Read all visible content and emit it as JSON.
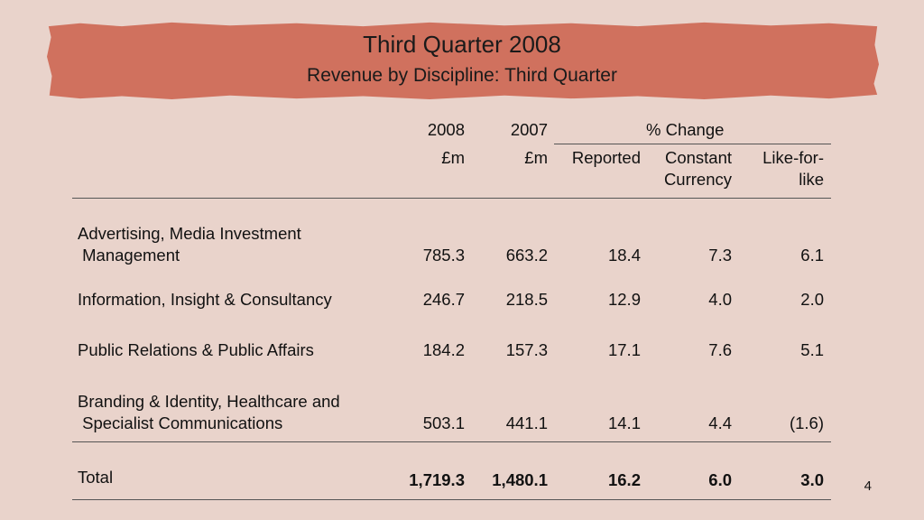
{
  "header": {
    "title": "Third Quarter 2008",
    "subtitle": "Revenue by Discipline: Third Quarter"
  },
  "table": {
    "columns": {
      "y2008": "2008",
      "y2007": "2007",
      "pct_change": "% Change",
      "unit_2008": "£m",
      "unit_2007": "£m",
      "reported": "Reported",
      "constant_1": "Constant",
      "constant_2": "Currency",
      "lfl_1": "Like-for-",
      "lfl_2": "like"
    },
    "rows": [
      {
        "label_1": "Advertising, Media Investment",
        "label_2": " Management",
        "y2008": "785.3",
        "y2007": "663.2",
        "reported": "18.4",
        "constant": "7.3",
        "lfl": "6.1"
      },
      {
        "label_1": "Information, Insight & Consultancy",
        "y2008": "246.7",
        "y2007": "218.5",
        "reported": "12.9",
        "constant": "4.0",
        "lfl": "2.0"
      },
      {
        "label_1": "Public Relations & Public Affairs",
        "y2008": "184.2",
        "y2007": "157.3",
        "reported": "17.1",
        "constant": "7.6",
        "lfl": "5.1"
      },
      {
        "label_1": "Branding & Identity, Healthcare and",
        "label_2": " Specialist Communications",
        "y2008": "503.1",
        "y2007": "441.1",
        "reported": "14.1",
        "constant": "4.4",
        "lfl": "(1.6)"
      }
    ],
    "total": {
      "label": "Total",
      "y2008": "1,719.3",
      "y2007": "1,480.1",
      "reported": "16.2",
      "constant": "6.0",
      "lfl": "3.0"
    }
  },
  "footer": {
    "page_number": "4"
  }
}
